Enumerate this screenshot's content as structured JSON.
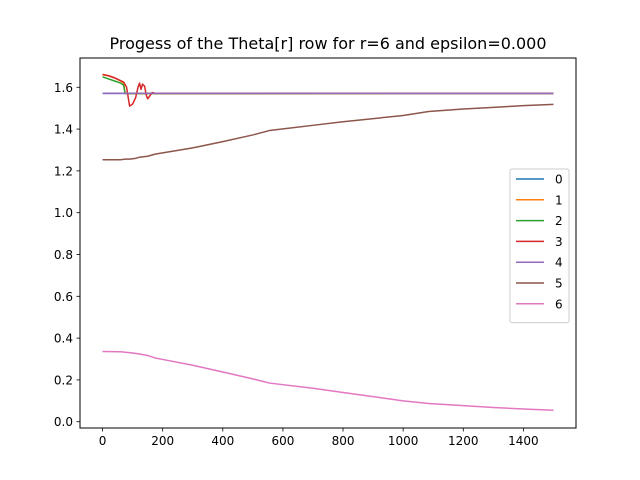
{
  "chart_data": {
    "type": "line",
    "title": "Progess of the Theta[r] row for r=6 and epsilon=0.000",
    "xlabel": "",
    "ylabel": "",
    "xlim": [
      -75,
      1575
    ],
    "ylim": [
      -0.03,
      1.74
    ],
    "xticks": [
      0,
      200,
      400,
      600,
      800,
      1000,
      1200,
      1400
    ],
    "yticks": [
      0.0,
      0.2,
      0.4,
      0.6,
      0.8,
      1.0,
      1.2,
      1.4,
      1.6
    ],
    "grid": false,
    "legend_position": "center-right",
    "series": [
      {
        "name": "0",
        "color": "#1f77b4",
        "points": [
          [
            0,
            1.571
          ],
          [
            1500,
            1.571
          ]
        ]
      },
      {
        "name": "1",
        "color": "#ff7f0e",
        "points": [
          [
            0,
            1.66
          ],
          [
            20,
            1.655
          ],
          [
            40,
            1.645
          ],
          [
            60,
            1.63
          ],
          [
            70,
            1.62
          ],
          [
            75,
            1.57
          ],
          [
            1500,
            1.571
          ]
        ]
      },
      {
        "name": "2",
        "color": "#2ca02c",
        "points": [
          [
            0,
            1.65
          ],
          [
            20,
            1.64
          ],
          [
            40,
            1.63
          ],
          [
            60,
            1.62
          ],
          [
            70,
            1.61
          ],
          [
            75,
            1.57
          ],
          [
            1500,
            1.571
          ]
        ]
      },
      {
        "name": "3",
        "color": "#d62728",
        "points": [
          [
            0,
            1.662
          ],
          [
            20,
            1.655
          ],
          [
            40,
            1.645
          ],
          [
            55,
            1.635
          ],
          [
            70,
            1.625
          ],
          [
            80,
            1.6
          ],
          [
            90,
            1.51
          ],
          [
            100,
            1.52
          ],
          [
            110,
            1.55
          ],
          [
            118,
            1.6
          ],
          [
            123,
            1.62
          ],
          [
            128,
            1.59
          ],
          [
            133,
            1.615
          ],
          [
            140,
            1.605
          ],
          [
            145,
            1.565
          ],
          [
            150,
            1.545
          ],
          [
            158,
            1.56
          ],
          [
            165,
            1.575
          ],
          [
            175,
            1.571
          ],
          [
            1500,
            1.571
          ]
        ]
      },
      {
        "name": "4",
        "color": "#9467bd",
        "points": [
          [
            0,
            1.571
          ],
          [
            1500,
            1.571
          ]
        ]
      },
      {
        "name": "5",
        "color": "#8c564b",
        "points": [
          [
            0,
            1.253
          ],
          [
            40,
            1.253
          ],
          [
            60,
            1.253
          ],
          [
            75,
            1.256
          ],
          [
            90,
            1.256
          ],
          [
            110,
            1.26
          ],
          [
            125,
            1.266
          ],
          [
            150,
            1.27
          ],
          [
            175,
            1.28
          ],
          [
            200,
            1.286
          ],
          [
            300,
            1.31
          ],
          [
            400,
            1.34
          ],
          [
            500,
            1.372
          ],
          [
            555,
            1.393
          ],
          [
            700,
            1.418
          ],
          [
            800,
            1.435
          ],
          [
            1000,
            1.465
          ],
          [
            1085,
            1.484
          ],
          [
            1200,
            1.496
          ],
          [
            1300,
            1.504
          ],
          [
            1400,
            1.512
          ],
          [
            1500,
            1.518
          ]
        ]
      },
      {
        "name": "6",
        "color": "#e377c2",
        "points": [
          [
            0,
            0.336
          ],
          [
            60,
            0.335
          ],
          [
            80,
            0.332
          ],
          [
            110,
            0.327
          ],
          [
            130,
            0.322
          ],
          [
            150,
            0.317
          ],
          [
            175,
            0.305
          ],
          [
            200,
            0.298
          ],
          [
            300,
            0.27
          ],
          [
            400,
            0.238
          ],
          [
            500,
            0.205
          ],
          [
            555,
            0.185
          ],
          [
            700,
            0.16
          ],
          [
            800,
            0.14
          ],
          [
            900,
            0.12
          ],
          [
            1000,
            0.1
          ],
          [
            1085,
            0.087
          ],
          [
            1200,
            0.077
          ],
          [
            1300,
            0.068
          ],
          [
            1400,
            0.061
          ],
          [
            1500,
            0.055
          ]
        ]
      }
    ]
  }
}
